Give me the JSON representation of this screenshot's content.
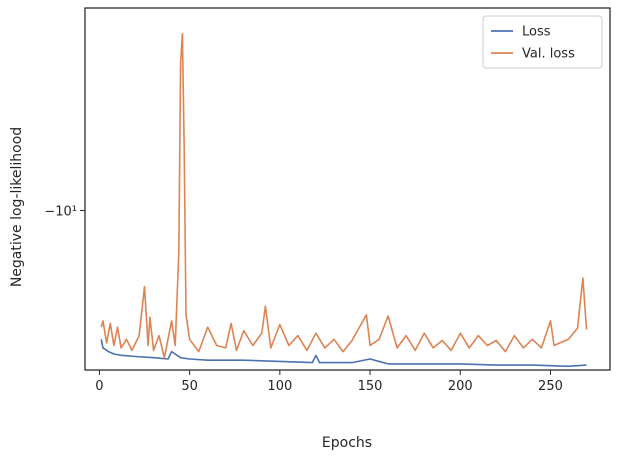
{
  "chart_data": {
    "type": "line",
    "title": "",
    "xlabel": "Epochs",
    "ylabel": "Negative log-likelihood",
    "xlim": [
      -8,
      283
    ],
    "ylim": [
      -11.3,
      -8.35
    ],
    "yscale": "symlog",
    "x_ticks": [
      0,
      50,
      100,
      150,
      200,
      250
    ],
    "x_tick_labels": [
      "0",
      "50",
      "100",
      "150",
      "200",
      "250"
    ],
    "y_ticks": [
      -10
    ],
    "y_tick_labels": [
      "−10¹"
    ],
    "grid": false,
    "legend_position": "top-right",
    "series": [
      {
        "name": "Loss",
        "color": "#4c72b0",
        "x": [
          1,
          2,
          3,
          5,
          8,
          12,
          20,
          30,
          38,
          40,
          45,
          50,
          60,
          80,
          100,
          118,
          120,
          122,
          140,
          150,
          160,
          180,
          200,
          220,
          240,
          260,
          270
        ],
        "y": [
          -11.05,
          -11.12,
          -11.13,
          -11.15,
          -11.17,
          -11.18,
          -11.19,
          -11.2,
          -11.21,
          -11.15,
          -11.2,
          -11.21,
          -11.22,
          -11.22,
          -11.23,
          -11.24,
          -11.18,
          -11.24,
          -11.24,
          -11.21,
          -11.25,
          -11.25,
          -11.25,
          -11.26,
          -11.26,
          -11.27,
          -11.26
        ]
      },
      {
        "name": "Val. loss",
        "color": "#dd8452",
        "x": [
          1,
          2,
          4,
          6,
          8,
          10,
          12,
          15,
          18,
          22,
          25,
          27,
          28,
          30,
          33,
          36,
          40,
          42,
          44,
          45,
          46,
          47,
          48,
          50,
          55,
          60,
          65,
          70,
          73,
          76,
          80,
          85,
          90,
          92,
          95,
          100,
          105,
          110,
          115,
          120,
          125,
          130,
          135,
          140,
          148,
          150,
          155,
          160,
          165,
          170,
          175,
          180,
          185,
          190,
          195,
          200,
          205,
          210,
          215,
          220,
          225,
          230,
          235,
          240,
          245,
          250,
          252,
          255,
          260,
          265,
          268,
          270
        ],
        "y": [
          -10.95,
          -10.9,
          -11.08,
          -10.92,
          -11.1,
          -10.95,
          -11.12,
          -11.05,
          -11.14,
          -11.02,
          -10.62,
          -11.1,
          -10.87,
          -11.14,
          -11.02,
          -11.2,
          -10.9,
          -11.1,
          -10.35,
          -8.8,
          -8.56,
          -9.5,
          -10.85,
          -11.05,
          -11.15,
          -10.95,
          -11.1,
          -11.12,
          -10.92,
          -11.14,
          -10.98,
          -11.1,
          -11.0,
          -10.78,
          -11.12,
          -10.93,
          -11.1,
          -11.02,
          -11.14,
          -11.0,
          -11.12,
          -11.05,
          -11.15,
          -11.06,
          -10.85,
          -11.1,
          -11.05,
          -10.86,
          -11.12,
          -11.02,
          -11.14,
          -11.0,
          -11.12,
          -11.06,
          -11.14,
          -11.0,
          -11.12,
          -11.02,
          -11.1,
          -11.06,
          -11.15,
          -11.02,
          -11.12,
          -11.05,
          -11.12,
          -10.9,
          -11.1,
          -11.08,
          -11.05,
          -10.96,
          -10.55,
          -10.97
        ]
      }
    ]
  }
}
